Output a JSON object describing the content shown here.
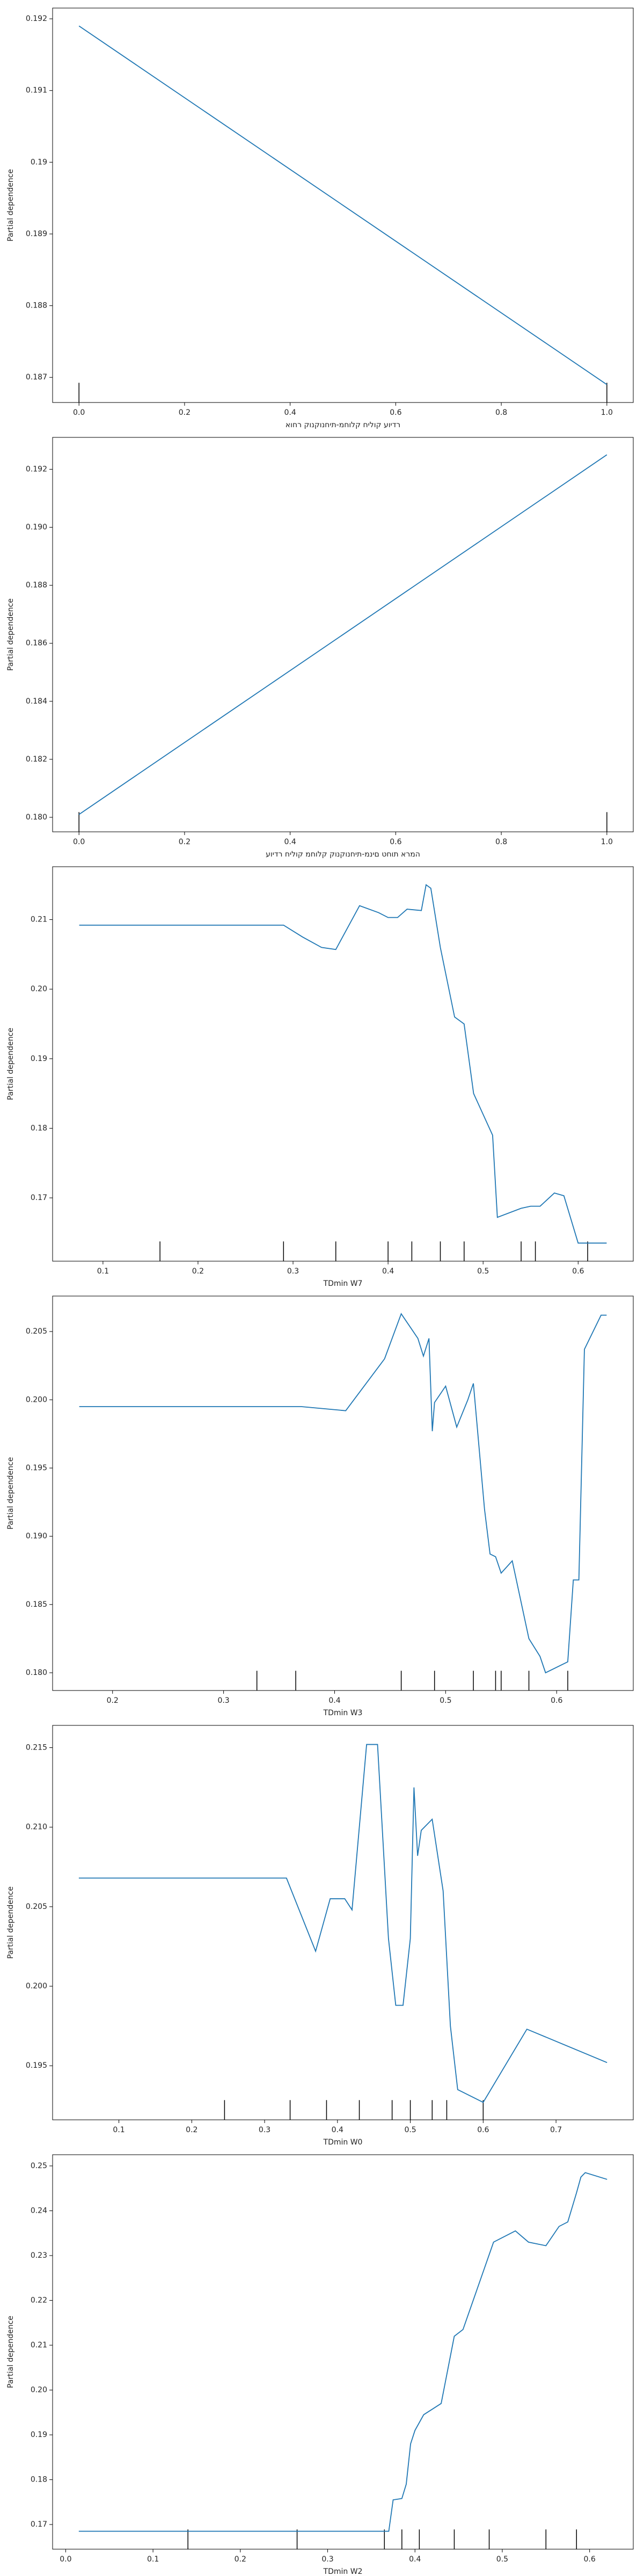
{
  "chart_data": [
    {
      "type": "line",
      "ylabel": "Partial dependence",
      "xlabel": "רדיוע קוליח קלוחמ-תיחנוקנוק רחוא",
      "color": "#1f77b4",
      "x": [
        0,
        1
      ],
      "values": [
        0.1919,
        0.1869
      ],
      "deciles": [
        0,
        1
      ],
      "xlim": [
        -0.05,
        1.05
      ],
      "ylim": [
        0.18665,
        0.19215
      ],
      "xticks": [
        {
          "value": 0,
          "label": "0.0"
        },
        0.2,
        0.4,
        0.6,
        0.8,
        {
          "value": 1,
          "label": "1.0"
        }
      ],
      "yticks": [
        0.187,
        0.188,
        0.189,
        0.19,
        0.191,
        0.192
      ]
    },
    {
      "type": "line",
      "ylabel": "Partial dependence",
      "xlabel": "המרא תוחט םינמ-תיחנוקנוק קלוחמ קוליח רדיוע",
      "color": "#1f77b4",
      "x": [
        0,
        1
      ],
      "values": [
        0.1801,
        0.1925
      ],
      "deciles": [
        0,
        1
      ],
      "xlim": [
        -0.05,
        1.05
      ],
      "ylim": [
        0.1795,
        0.1931
      ],
      "xticks": [
        {
          "value": 0,
          "label": "0.0"
        },
        0.2,
        0.4,
        0.6,
        0.8,
        {
          "value": 1,
          "label": "1.0"
        }
      ],
      "yticks": [
        {
          "value": 0.18,
          "label": "0.180"
        },
        0.182,
        0.184,
        0.186,
        0.188,
        {
          "value": 0.19,
          "label": "0.190"
        },
        0.192
      ]
    },
    {
      "type": "line",
      "ylabel": "Partial dependence",
      "xlabel": "TDmin W7",
      "color": "#1f77b4",
      "x": [
        0.075,
        0.29,
        0.31,
        0.33,
        0.345,
        0.37,
        0.39,
        0.4,
        0.41,
        0.42,
        0.435,
        0.44,
        0.445,
        0.455,
        0.47,
        0.48,
        0.49,
        0.51,
        0.515,
        0.54,
        0.55,
        0.56,
        0.575,
        0.585,
        0.6,
        0.63
      ],
      "values": [
        0.2092,
        0.2092,
        0.2075,
        0.206,
        0.2057,
        0.212,
        0.211,
        0.2103,
        0.2103,
        0.2115,
        0.2113,
        0.215,
        0.2145,
        0.206,
        0.196,
        0.195,
        0.185,
        0.179,
        0.1672,
        0.1685,
        0.1688,
        0.1688,
        0.1707,
        0.1703,
        0.1635,
        0.1635
      ],
      "deciles": [
        0.16,
        0.29,
        0.345,
        0.4,
        0.425,
        0.455,
        0.48,
        0.54,
        0.555,
        0.61
      ],
      "xlim": [
        0.047,
        0.658
      ],
      "ylim": [
        0.1609,
        0.2176
      ],
      "xticks": [
        0.1,
        0.2,
        0.3,
        0.4,
        0.5,
        0.6
      ],
      "yticks": [
        0.17,
        0.18,
        0.19,
        {
          "value": 0.2,
          "label": "0.20"
        },
        0.21
      ]
    },
    {
      "type": "line",
      "ylabel": "Partial dependence",
      "xlabel": "TDmin W3",
      "color": "#1f77b4",
      "x": [
        0.17,
        0.37,
        0.41,
        0.445,
        0.46,
        0.475,
        0.48,
        0.485,
        0.488,
        0.49,
        0.5,
        0.51,
        0.52,
        0.525,
        0.535,
        0.54,
        0.545,
        0.55,
        0.56,
        0.575,
        0.585,
        0.59,
        0.61,
        0.615,
        0.62,
        0.625,
        0.64,
        0.645
      ],
      "values": [
        0.1995,
        0.1995,
        0.1992,
        0.203,
        0.2063,
        0.2045,
        0.2032,
        0.2045,
        0.1977,
        0.1998,
        0.201,
        0.198,
        0.2,
        0.2012,
        0.192,
        0.1887,
        0.1885,
        0.1873,
        0.1882,
        0.1825,
        0.1812,
        0.18,
        0.1808,
        0.1868,
        0.1868,
        0.2037,
        0.2062,
        0.2062
      ],
      "deciles": [
        0.33,
        0.365,
        0.46,
        0.49,
        0.525,
        0.545,
        0.55,
        0.575,
        0.61
      ],
      "xlim": [
        0.146,
        0.669
      ],
      "ylim": [
        0.1787,
        0.2076
      ],
      "xticks": [
        0.2,
        0.3,
        0.4,
        0.5,
        0.6
      ],
      "yticks": [
        {
          "value": 0.18,
          "label": "0.180"
        },
        0.185,
        {
          "value": 0.19,
          "label": "0.190"
        },
        0.195,
        {
          "value": 0.2,
          "label": "0.200"
        },
        0.205
      ]
    },
    {
      "type": "line",
      "ylabel": "Partial dependence",
      "xlabel": "TDmin W0",
      "color": "#1f77b4",
      "x": [
        0.045,
        0.33,
        0.37,
        0.39,
        0.41,
        0.42,
        0.44,
        0.455,
        0.47,
        0.48,
        0.49,
        0.5,
        0.505,
        0.51,
        0.515,
        0.53,
        0.545,
        0.555,
        0.565,
        0.6,
        0.66,
        0.77
      ],
      "values": [
        0.2068,
        0.2068,
        0.2022,
        0.2055,
        0.2055,
        0.2048,
        0.2152,
        0.2152,
        0.203,
        0.1988,
        0.1988,
        0.203,
        0.2125,
        0.2082,
        0.2098,
        0.2105,
        0.206,
        0.1975,
        0.1935,
        0.1927,
        0.1973,
        0.1952
      ],
      "deciles": [
        0.245,
        0.335,
        0.385,
        0.43,
        0.475,
        0.5,
        0.53,
        0.55,
        0.6
      ],
      "xlim": [
        0.009,
        0.806
      ],
      "ylim": [
        0.1916,
        0.2164
      ],
      "xticks": [
        0.1,
        0.2,
        0.3,
        0.4,
        0.5,
        0.6,
        0.7
      ],
      "yticks": [
        0.195,
        {
          "value": 0.2,
          "label": "0.200"
        },
        0.205,
        {
          "value": 0.21,
          "label": "0.210"
        },
        0.215
      ]
    },
    {
      "type": "line",
      "ylabel": "Partial dependence",
      "xlabel": "TDmin W2",
      "color": "#1f77b4",
      "x": [
        0.015,
        0.37,
        0.375,
        0.385,
        0.39,
        0.395,
        0.4,
        0.41,
        0.43,
        0.445,
        0.455,
        0.49,
        0.515,
        0.53,
        0.55,
        0.565,
        0.575,
        0.585,
        0.59,
        0.595,
        0.62
      ],
      "values": [
        0.1685,
        0.1685,
        0.1755,
        0.1758,
        0.179,
        0.188,
        0.191,
        0.1945,
        0.197,
        0.212,
        0.2135,
        0.233,
        0.2355,
        0.233,
        0.2322,
        0.2365,
        0.2375,
        0.244,
        0.2475,
        0.2485,
        0.247
      ],
      "deciles": [
        0.14,
        0.265,
        0.365,
        0.385,
        0.405,
        0.445,
        0.485,
        0.55,
        0.585
      ],
      "xlim": [
        -0.015,
        0.65
      ],
      "ylim": [
        0.1645,
        0.2525
      ],
      "xticks": [
        {
          "value": 0,
          "label": "0.0"
        },
        0.1,
        0.2,
        0.3,
        0.4,
        0.5,
        0.6
      ],
      "yticks": [
        0.17,
        0.18,
        0.19,
        {
          "value": 0.2,
          "label": "0.20"
        },
        0.21,
        0.22,
        0.23,
        0.24,
        0.25
      ]
    }
  ]
}
